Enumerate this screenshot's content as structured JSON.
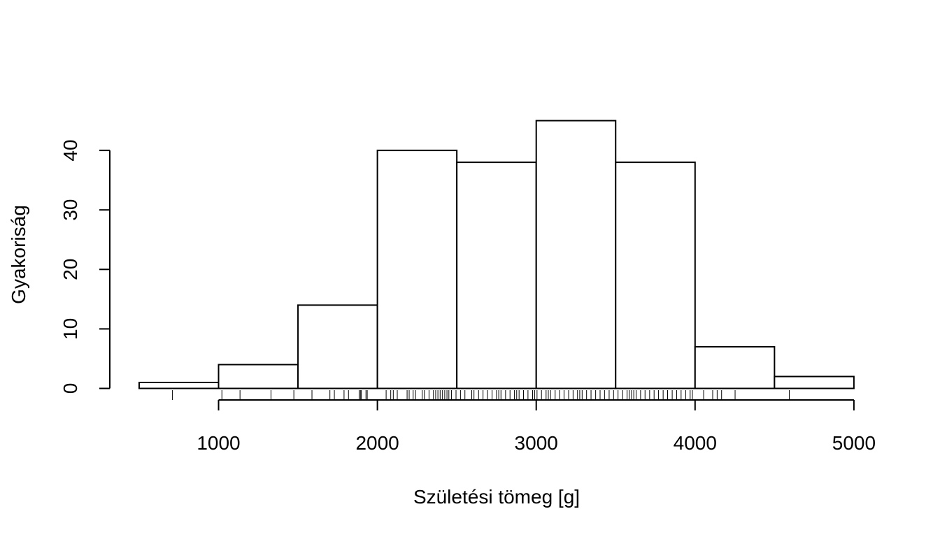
{
  "chart_data": {
    "type": "bar",
    "subtype": "histogram",
    "xlabel": "Születési tömeg [g]",
    "ylabel": "Gyakoriság",
    "bins": [
      {
        "from": 500,
        "to": 1000,
        "count": 1
      },
      {
        "from": 1000,
        "to": 1500,
        "count": 4
      },
      {
        "from": 1500,
        "to": 2000,
        "count": 14
      },
      {
        "from": 2000,
        "to": 2500,
        "count": 40
      },
      {
        "from": 2500,
        "to": 3000,
        "count": 38
      },
      {
        "from": 3000,
        "to": 3500,
        "count": 45
      },
      {
        "from": 3500,
        "to": 4000,
        "count": 38
      },
      {
        "from": 4000,
        "to": 4500,
        "count": 7
      },
      {
        "from": 4500,
        "to": 5000,
        "count": 2
      }
    ],
    "x_ticks": [
      "1000",
      "2000",
      "3000",
      "4000",
      "5000"
    ],
    "x_tick_values": [
      1000,
      2000,
      3000,
      4000,
      5000
    ],
    "y_ticks": [
      "0",
      "10",
      "20",
      "30",
      "40"
    ],
    "y_tick_values": [
      0,
      10,
      20,
      30,
      40
    ],
    "xlim": [
      500,
      5000
    ],
    "ylim": [
      0,
      45
    ],
    "grid": false,
    "legend": "none",
    "rug": [
      709,
      1021,
      1135,
      1330,
      1474,
      1588,
      1701,
      1729,
      1790,
      1818,
      1885,
      1893,
      1899,
      1928,
      1936,
      2055,
      2084,
      2100,
      2125,
      2187,
      2200,
      2225,
      2240,
      2282,
      2296,
      2325,
      2353,
      2367,
      2381,
      2395,
      2410,
      2424,
      2438,
      2450,
      2466,
      2495,
      2523,
      2551,
      2594,
      2608,
      2637,
      2665,
      2693,
      2722,
      2750,
      2764,
      2778,
      2807,
      2835,
      2863,
      2877,
      2892,
      2920,
      2948,
      2977,
      2990,
      3005,
      3033,
      3062,
      3076,
      3090,
      3119,
      3147,
      3175,
      3204,
      3232,
      3260,
      3274,
      3289,
      3317,
      3345,
      3374,
      3402,
      3430,
      3459,
      3487,
      3515,
      3544,
      3572,
      3586,
      3600,
      3614,
      3629,
      3657,
      3685,
      3714,
      3742,
      3770,
      3799,
      3827,
      3856,
      3884,
      3912,
      3941,
      3969,
      3983,
      4054,
      4111,
      4139,
      4167,
      4252,
      4593
    ]
  }
}
